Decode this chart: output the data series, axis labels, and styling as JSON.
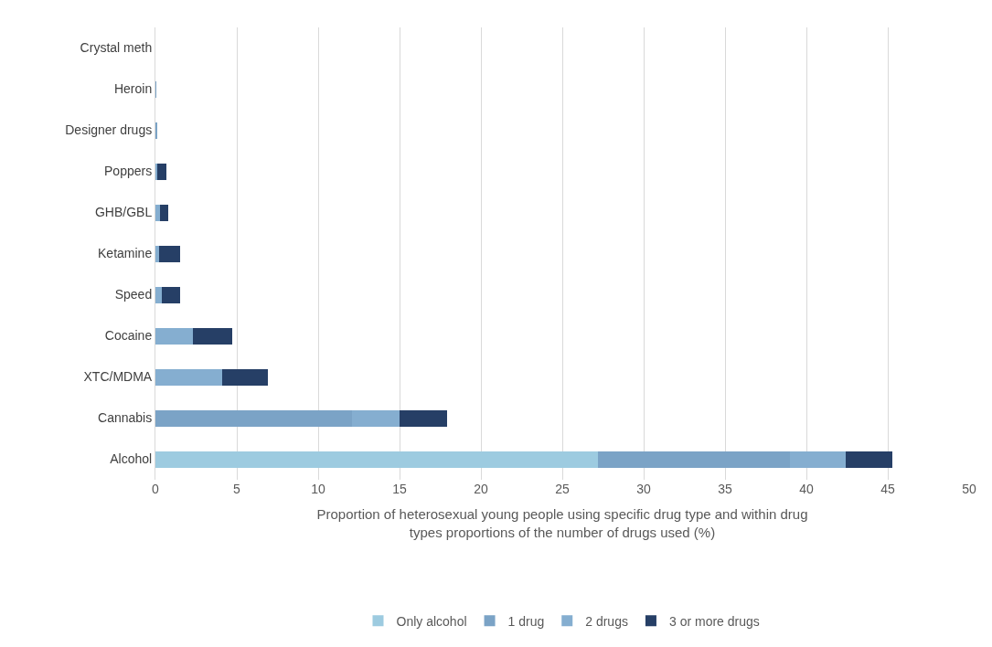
{
  "chart_data": {
    "type": "bar",
    "orientation": "horizontal",
    "stacked": true,
    "xlabel": "Proportion of heterosexual young people using specific drug type and within drug types proportions of the number of drugs used (%)",
    "categories": [
      "Crystal meth",
      "Heroin",
      "Designer drugs",
      "Poppers",
      "GHB/GBL",
      "Ketamine",
      "Speed",
      "Cocaine",
      "XTC/MDMA",
      "Cannabis",
      "Alcohol"
    ],
    "series": [
      {
        "name": "Only alcohol",
        "color": "#9dcbe0",
        "values": [
          0,
          0,
          0,
          0,
          0,
          0,
          0,
          0,
          0,
          0,
          27.2
        ]
      },
      {
        "name": "1 drug",
        "color": "#7ba3c6",
        "values": [
          0,
          0.05,
          0.1,
          0,
          0,
          0,
          0,
          0,
          0,
          12.1,
          11.8
        ]
      },
      {
        "name": "2 drugs",
        "color": "#85aed0",
        "values": [
          0,
          0,
          0,
          0.1,
          0.3,
          0.2,
          0.4,
          2.3,
          4.1,
          2.9,
          3.4
        ]
      },
      {
        "name": "3 or more drugs",
        "color": "#263f66",
        "values": [
          0,
          0,
          0,
          0.6,
          0.5,
          1.3,
          1.1,
          2.4,
          2.8,
          2.9,
          2.9
        ]
      }
    ],
    "xlim": [
      0,
      50
    ],
    "xticks": [
      0,
      5,
      10,
      15,
      20,
      25,
      30,
      35,
      40,
      45,
      50
    ],
    "grid": "x",
    "legend": "bottom"
  }
}
